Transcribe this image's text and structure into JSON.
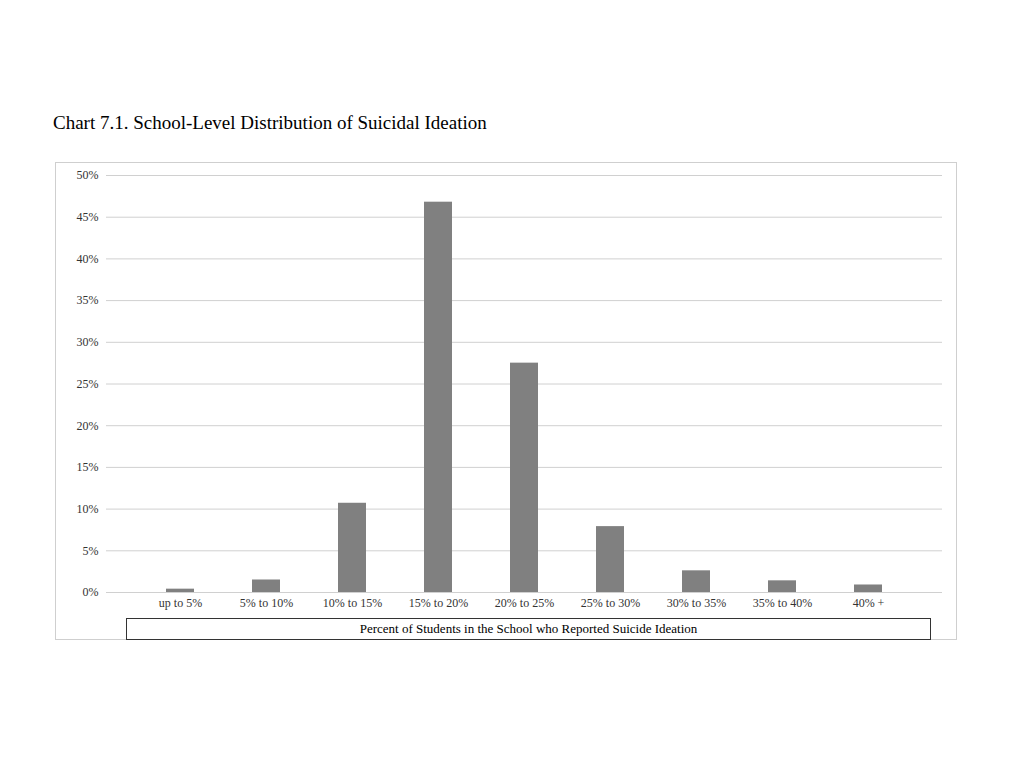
{
  "chart_data": {
    "type": "bar",
    "title": "Chart 7.1. School-Level Distribution of Suicidal Ideation",
    "x_label": "Percent of Students in the School who Reported Suicide Ideation",
    "categories": [
      "up to 5%",
      "5% to 10%",
      "10% to 15%",
      "15% to 20%",
      "20% to 25%",
      "25% to 30%",
      "30% to 35%",
      "35% to 40%",
      "40% +"
    ],
    "values": [
      0.4,
      1.5,
      10.7,
      46.8,
      27.5,
      7.9,
      2.6,
      1.4,
      0.9
    ],
    "color": "#808080",
    "ylim": [
      0,
      50
    ],
    "yticks": [
      {
        "value": 0,
        "label": "0%"
      },
      {
        "value": 5,
        "label": "5%"
      },
      {
        "value": 10,
        "label": "10%"
      },
      {
        "value": 15,
        "label": "15%"
      },
      {
        "value": 20,
        "label": "20%"
      },
      {
        "value": 25,
        "label": "25%"
      },
      {
        "value": 30,
        "label": "30%"
      },
      {
        "value": 35,
        "label": "35%"
      },
      {
        "value": 40,
        "label": "40%"
      },
      {
        "value": 45,
        "label": "45%"
      },
      {
        "value": 50,
        "label": "50%"
      }
    ],
    "grid": true
  }
}
